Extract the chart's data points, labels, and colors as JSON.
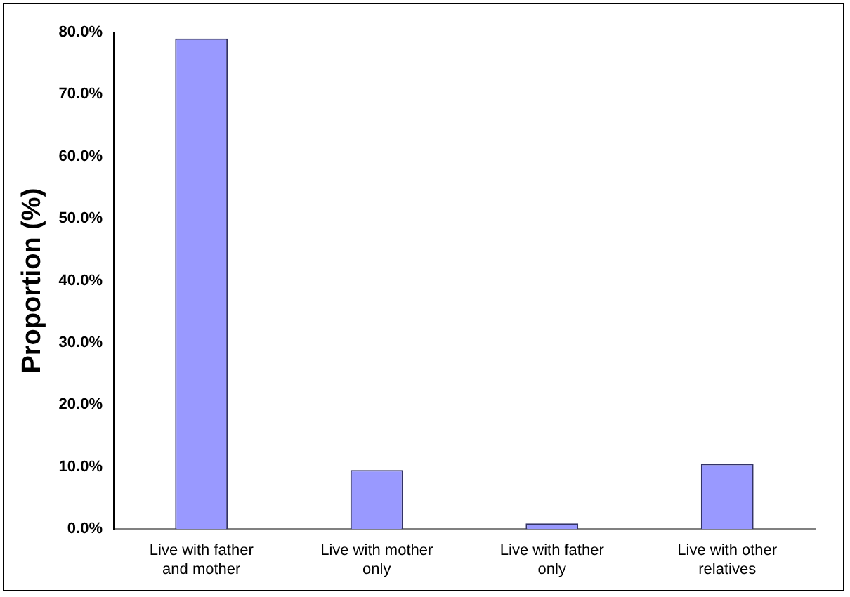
{
  "chart_data": {
    "type": "bar",
    "ylabel": "Proportion (%)",
    "categories": [
      "Live with father and mother",
      "Live with mother only",
      "Live with father only",
      "Live with other relatives"
    ],
    "values": [
      79.0,
      9.5,
      0.9,
      10.5
    ],
    "color": "#9999ff",
    "ylim": [
      0,
      80
    ],
    "yticks": [
      {
        "value": 0,
        "label": "0.0%"
      },
      {
        "value": 10,
        "label": "10.0%"
      },
      {
        "value": 20,
        "label": "20.0%"
      },
      {
        "value": 30,
        "label": "30.0%"
      },
      {
        "value": 40,
        "label": "40.0%"
      },
      {
        "value": 50,
        "label": "50.0%"
      },
      {
        "value": 60,
        "label": "60.0%"
      },
      {
        "value": 70,
        "label": "70.0%"
      },
      {
        "value": 80,
        "label": "80.0%"
      }
    ],
    "grid": false,
    "legend": false
  }
}
